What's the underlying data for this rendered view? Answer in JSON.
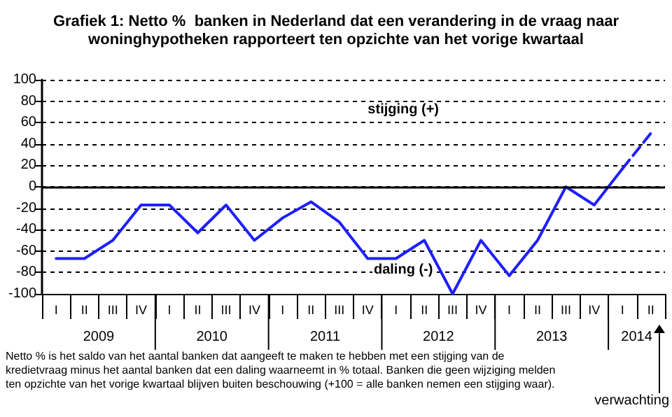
{
  "chart_data": {
    "type": "line",
    "title": "Grafiek 1: Netto %  banken in Nederland dat een verandering in de vraag naar\nwoninghypotheken rapporteert ten opzichte van het vorige kwartaal",
    "categories": [
      "I",
      "II",
      "III",
      "IV",
      "I",
      "II",
      "III",
      "IV",
      "I",
      "II",
      "III",
      "IV",
      "I",
      "II",
      "III",
      "IV",
      "I",
      "II",
      "III",
      "IV",
      "I",
      "II"
    ],
    "series": [
      {
        "color": "#1f1fff",
        "line_style": "solid",
        "values": [
          -67,
          -67,
          -50,
          -17,
          -17,
          -43,
          -17,
          -50,
          -29,
          -14,
          -33,
          -67,
          -67,
          -50,
          -100,
          -50,
          -83,
          -50,
          0,
          -17,
          17,
          null
        ]
      },
      {
        "color": "#1f1fff",
        "line_style": "dashed",
        "values": [
          null,
          null,
          null,
          null,
          null,
          null,
          null,
          null,
          null,
          null,
          null,
          null,
          null,
          null,
          null,
          null,
          null,
          null,
          null,
          null,
          17,
          50
        ]
      }
    ],
    "ylim": [
      -100,
      100
    ],
    "yticks": [
      -100,
      -80,
      -60,
      -40,
      -20,
      0,
      20,
      40,
      60,
      80,
      100
    ],
    "grid": "y",
    "marker": "none",
    "ref_lines": [
      {
        "axis": "y",
        "value": 0,
        "color": "#000000",
        "line_style": "solid"
      }
    ],
    "annotations": [
      "2009",
      "2010",
      "2011",
      "2012",
      "2013",
      "2014",
      "stijging (+)",
      "daling (-)",
      "Netto % is het saldo van het aantal banken dat aangeeft te maken te hebben met een stijging van de kredietvraag minus het aantal banken dat een daling  waarneemt in % totaal. Banken die geen wijziging melden ten opzichte van  het vorige kwartaal blijven buiten beschouwing (+100 = alle banken nemen een stijging waar).",
      "verwachting"
    ]
  }
}
